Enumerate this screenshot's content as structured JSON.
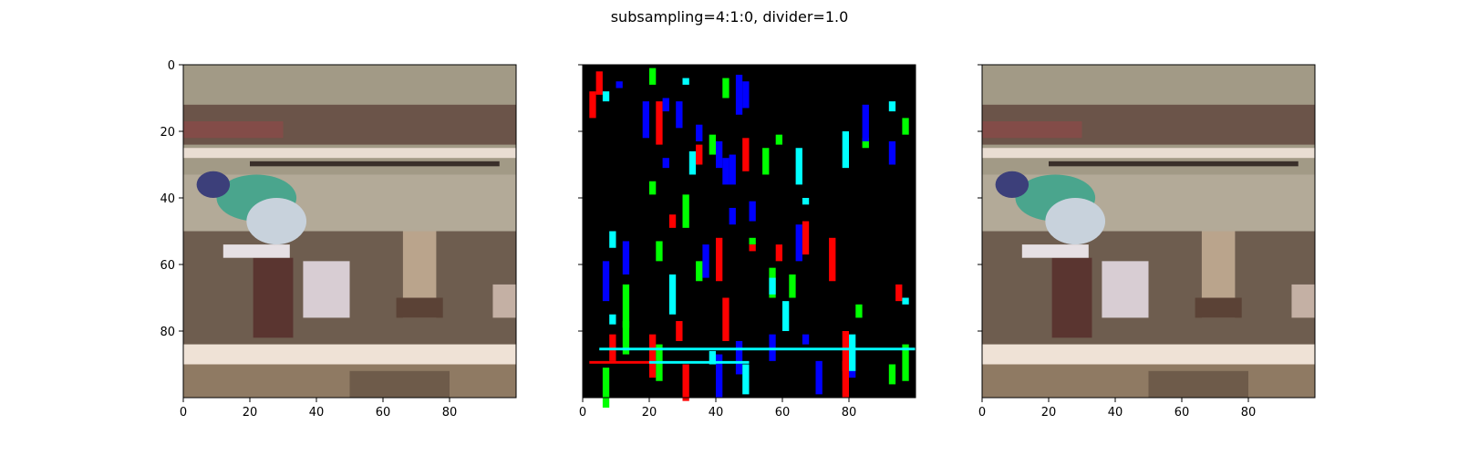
{
  "figure": {
    "suptitle": "subsampling=4:1:0, divider=1.0"
  },
  "chart_data": [
    {
      "type": "heatmap",
      "panel": "left",
      "content": "decoded image (photo)",
      "xlim": [
        0,
        100
      ],
      "ylim": [
        100,
        0
      ],
      "x_ticks": [
        0,
        20,
        40,
        60,
        80
      ],
      "y_ticks": [
        0,
        20,
        40,
        60,
        80
      ],
      "show_y_tick_labels": true
    },
    {
      "type": "heatmap",
      "panel": "middle",
      "content": "difference map",
      "xlim": [
        0,
        100
      ],
      "ylim": [
        100,
        0
      ],
      "x_ticks": [
        0,
        20,
        40,
        60,
        80
      ],
      "y_ticks": [
        0,
        20,
        40,
        60,
        80
      ],
      "show_y_tick_labels": false,
      "colors": [
        "#000000",
        "#ff0000",
        "#00ff00",
        "#0000ff",
        "#00ffff",
        "#ff00ff",
        "#ffff00"
      ]
    },
    {
      "type": "heatmap",
      "panel": "right",
      "content": "decoded image (photo)",
      "xlim": [
        0,
        100
      ],
      "ylim": [
        100,
        0
      ],
      "x_ticks": [
        0,
        20,
        40,
        60,
        80
      ],
      "y_ticks": [
        0,
        20,
        40,
        60,
        80
      ],
      "show_y_tick_labels": false
    }
  ]
}
